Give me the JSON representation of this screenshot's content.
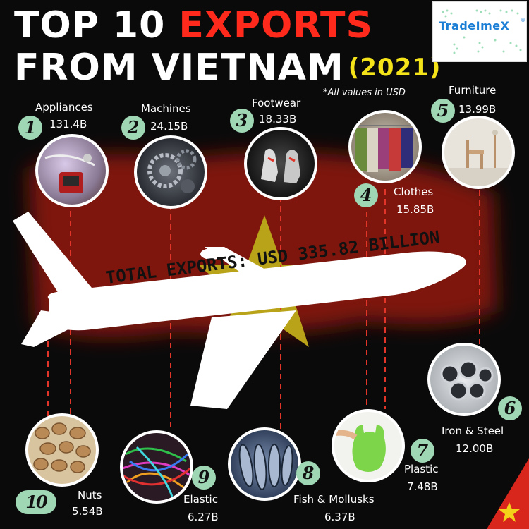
{
  "title": {
    "line1_part1": "TOP 10 ",
    "line1_part2": "EXPORTS",
    "line2": "FROM VIETNAM",
    "year": "(2021)"
  },
  "note": "*All values in USD",
  "logo": {
    "text": "TradeImeX",
    "reg": "®"
  },
  "total": "TOTAL EXPORTS: USD 335.82 BILLION",
  "colors": {
    "background": "#0a0a0a",
    "flag_red": "#8c1410",
    "star_yellow": "#c9b51a",
    "title_red": "#ff2a1c",
    "year_yellow": "#f5e31a",
    "badge_green": "#9fd6b4",
    "dashed_line": "#e03528"
  },
  "items": [
    {
      "rank": "1",
      "name": "Appliances",
      "value": "131.4B",
      "icon": "appliances-photo"
    },
    {
      "rank": "2",
      "name": "Machines",
      "value": "24.15B",
      "icon": "machines-photo"
    },
    {
      "rank": "3",
      "name": "Footwear",
      "value": "18.33B",
      "icon": "footwear-photo"
    },
    {
      "rank": "4",
      "name": "Clothes",
      "value": "15.85B",
      "icon": "clothes-photo"
    },
    {
      "rank": "5",
      "name": "Furniture",
      "value": "13.99B",
      "icon": "furniture-photo"
    },
    {
      "rank": "6",
      "name": "Iron & Steel",
      "value": "12.00B",
      "icon": "iron-steel-photo"
    },
    {
      "rank": "7",
      "name": "Plastic",
      "value": "7.48B",
      "icon": "plastic-photo"
    },
    {
      "rank": "8",
      "name": "Fish & Mollusks",
      "value": "6.37B",
      "icon": "fish-photo"
    },
    {
      "rank": "9",
      "name": "Elastic",
      "value": "6.27B",
      "icon": "elastic-photo"
    },
    {
      "rank": "10",
      "name": "Nuts",
      "value": "5.54B",
      "icon": "nuts-photo"
    }
  ]
}
